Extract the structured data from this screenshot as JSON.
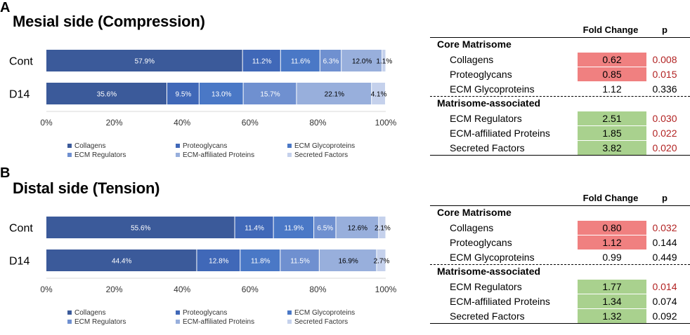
{
  "panels": [
    {
      "letter": "A",
      "title": "Mesial side (Compression)",
      "chart_data": {
        "type": "bar",
        "orientation": "horizontal-stacked-100",
        "categories": [
          "Cont",
          "D14"
        ],
        "series": [
          {
            "name": "Collagens",
            "color": "#3b5a9a",
            "values": [
              57.9,
              35.6
            ],
            "labels": [
              "57.9%",
              "35.6%"
            ]
          },
          {
            "name": "Proteoglycans",
            "color": "#4068b8",
            "values": [
              11.2,
              9.5
            ],
            "labels": [
              "11.2%",
              "9.5%"
            ]
          },
          {
            "name": "ECM Glycoproteins",
            "color": "#4a78c6",
            "values": [
              11.6,
              13.0
            ],
            "labels": [
              "11.6%",
              "13.0%"
            ]
          },
          {
            "name": "ECM Regulators",
            "color": "#6f90d0",
            "values": [
              6.3,
              15.7
            ],
            "labels": [
              "6.3%",
              "15.7%"
            ]
          },
          {
            "name": "ECM-affiliated Proteins",
            "color": "#98afdc",
            "values": [
              12.0,
              22.1
            ],
            "labels": [
              "12.0%",
              "22.1%"
            ]
          },
          {
            "name": "Secreted Factors",
            "color": "#c5d1ec",
            "values": [
              1.1,
              4.1
            ],
            "labels": [
              "1.1%",
              "4.1%"
            ]
          }
        ],
        "xlim": [
          0,
          100
        ],
        "xticks": [
          "0%",
          "20%",
          "40%",
          "60%",
          "80%",
          "100%"
        ],
        "legend": "bottom"
      },
      "table": {
        "headers": {
          "fold_change": "Fold Change",
          "p": "p"
        },
        "sections": [
          {
            "title": "Core Matrisome",
            "rows": [
              {
                "name": "Collagens",
                "fold_change": "0.62",
                "p": "0.008",
                "fc_color": "#f08080",
                "p_color": "#b22222"
              },
              {
                "name": "Proteoglycans",
                "fold_change": "0.85",
                "p": "0.015",
                "fc_color": "#f08080",
                "p_color": "#b22222"
              },
              {
                "name": "ECM Glycoproteins",
                "fold_change": "1.12",
                "p": "0.336",
                "fc_color": "none",
                "p_color": "#000000"
              }
            ]
          },
          {
            "title": "Matrisome-associated",
            "rows": [
              {
                "name": "ECM Regulators",
                "fold_change": "2.51",
                "p": "0.030",
                "fc_color": "#a9d18e",
                "p_color": "#b22222"
              },
              {
                "name": "ECM-affiliated Proteins",
                "fold_change": "1.85",
                "p": "0.022",
                "fc_color": "#a9d18e",
                "p_color": "#b22222"
              },
              {
                "name": "Secreted Factors",
                "fold_change": "3.82",
                "p": "0.020",
                "fc_color": "#a9d18e",
                "p_color": "#b22222"
              }
            ]
          }
        ]
      }
    },
    {
      "letter": "B",
      "title": "Distal side (Tension)",
      "chart_data": {
        "type": "bar",
        "orientation": "horizontal-stacked-100",
        "categories": [
          "Cont",
          "D14"
        ],
        "series": [
          {
            "name": "Collagens",
            "color": "#3b5a9a",
            "values": [
              55.6,
              44.4
            ],
            "labels": [
              "55.6%",
              "44.4%"
            ]
          },
          {
            "name": "Proteoglycans",
            "color": "#4068b8",
            "values": [
              11.4,
              12.8
            ],
            "labels": [
              "11.4%",
              "12.8%"
            ]
          },
          {
            "name": "ECM Glycoproteins",
            "color": "#4a78c6",
            "values": [
              11.9,
              11.8
            ],
            "labels": [
              "11.9%",
              "11.8%"
            ]
          },
          {
            "name": "ECM Regulators",
            "color": "#6f90d0",
            "values": [
              6.5,
              11.5
            ],
            "labels": [
              "6.5%",
              "11.5%"
            ]
          },
          {
            "name": "ECM-affiliated Proteins",
            "color": "#98afdc",
            "values": [
              12.6,
              16.9
            ],
            "labels": [
              "12.6%",
              "16.9%"
            ]
          },
          {
            "name": "Secreted Factors",
            "color": "#c5d1ec",
            "values": [
              2.1,
              2.7
            ],
            "labels": [
              "2.1%",
              "2.7%"
            ]
          }
        ],
        "xlim": [
          0,
          100
        ],
        "xticks": [
          "0%",
          "20%",
          "40%",
          "60%",
          "80%",
          "100%"
        ],
        "legend": "bottom"
      },
      "table": {
        "headers": {
          "fold_change": "Fold Change",
          "p": "p"
        },
        "sections": [
          {
            "title": "Core Matrisome",
            "rows": [
              {
                "name": "Collagens",
                "fold_change": "0.80",
                "p": "0.032",
                "fc_color": "#f08080",
                "p_color": "#b22222"
              },
              {
                "name": "Proteoglycans",
                "fold_change": "1.12",
                "p": "0.144",
                "fc_color": "#f08080",
                "p_color": "#000000"
              },
              {
                "name": "ECM Glycoproteins",
                "fold_change": "0.99",
                "p": "0.449",
                "fc_color": "none",
                "p_color": "#000000"
              }
            ]
          },
          {
            "title": "Matrisome-associated",
            "rows": [
              {
                "name": "ECM Regulators",
                "fold_change": "1.77",
                "p": "0.014",
                "fc_color": "#a9d18e",
                "p_color": "#b22222"
              },
              {
                "name": "ECM-affiliated Proteins",
                "fold_change": "1.34",
                "p": "0.074",
                "fc_color": "#a9d18e",
                "p_color": "#000000"
              },
              {
                "name": "Secreted Factors",
                "fold_change": "1.32",
                "p": "0.092",
                "fc_color": "#a9d18e",
                "p_color": "#000000"
              }
            ]
          }
        ]
      }
    }
  ]
}
